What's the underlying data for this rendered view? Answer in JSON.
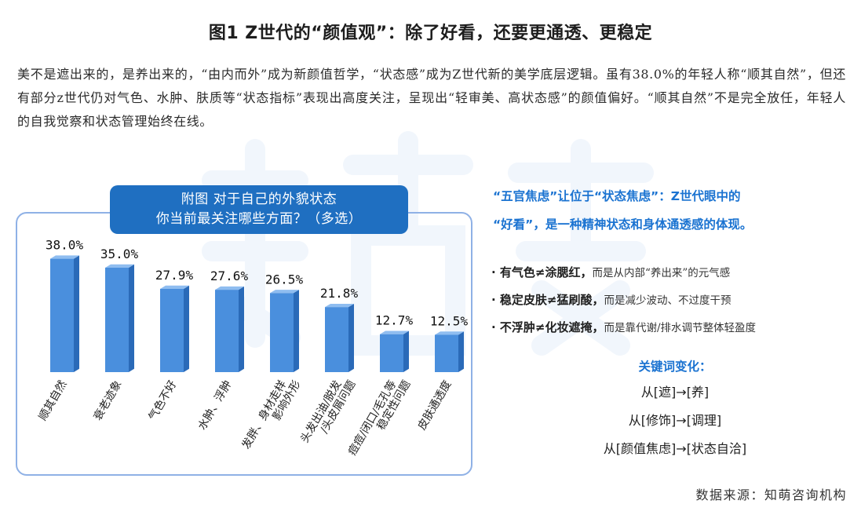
{
  "title": "图1 Z世代的“颜值观”：除了好看，还要更通透、更稳定",
  "intro": "美不是遮出来的，是养出来的，“由内而外”成为新颜值哲学，“状态感”成为Z世代新的美学底层逻辑。虽有38.0%的年轻人称“顺其自然”，但还有部分z世代仍对气色、水肿、肤质等“状态指标”表现出高度关注，呈现出“轻审美、高状态感”的颜值偏好。“顺其自然”不是完全放任，年轻人的自我觉察和状态管理始终在线。",
  "chart_header": {
    "line1": "附图 对于自己的外貌状态",
    "line2": "你当前最关注哪些方面？（多选）"
  },
  "chart_data": {
    "type": "bar",
    "categories": [
      [
        "顺其自然"
      ],
      [
        "衰老迹象"
      ],
      [
        "气色不好"
      ],
      [
        "水肿、浮肿"
      ],
      [
        "发胖、身材走样",
        "影响外形"
      ],
      [
        "头发出油/脱发",
        "/头皮屑问题"
      ],
      [
        "痘痘/闭口/毛孔等",
        "稳定性问题"
      ],
      [
        "皮肤通透度"
      ]
    ],
    "values": [
      38.0,
      35.0,
      27.9,
      27.6,
      26.5,
      21.8,
      12.7,
      12.5
    ],
    "value_labels": [
      "38.0%",
      "35.0%",
      "27.9%",
      "27.6%",
      "26.5%",
      "21.8%",
      "12.7%",
      "12.5%"
    ],
    "ylim": [
      0,
      40
    ],
    "colors": {
      "bar_front": "#4a8fdd",
      "bar_side": "#2a6ab8",
      "bar_top": "#8fbdf0"
    }
  },
  "right_panel": {
    "heading_line1": "“五官焦虑”让位于“状态焦虑”：Z世代眼中的",
    "heading_line2": "“好看”，是一种精神状态和身体通透感的体现。",
    "bullets": [
      {
        "main": "· 有气色≠涂腮红，",
        "sub": "而是从内部“养出来”的元气感"
      },
      {
        "main": "· 稳定皮肤≠猛刷酸，",
        "sub": "而是减少波动、不过度干预"
      },
      {
        "main": "· 不浮肿≠化妆遮掩，",
        "sub": "而是靠代谢/排水调节整体轻盈度"
      }
    ],
    "keywords_title": "关键词变化：",
    "keywords": [
      "从[遮]→[养]",
      "从[修饰]→[调理]",
      "从[颜值焦虑]→[状态自洽]"
    ]
  },
  "source": "数据来源：知萌咨询机构",
  "colors": {
    "accent": "#1b73d1",
    "header_bg": "#1f6fc1",
    "frame": "#8fb1e6"
  }
}
